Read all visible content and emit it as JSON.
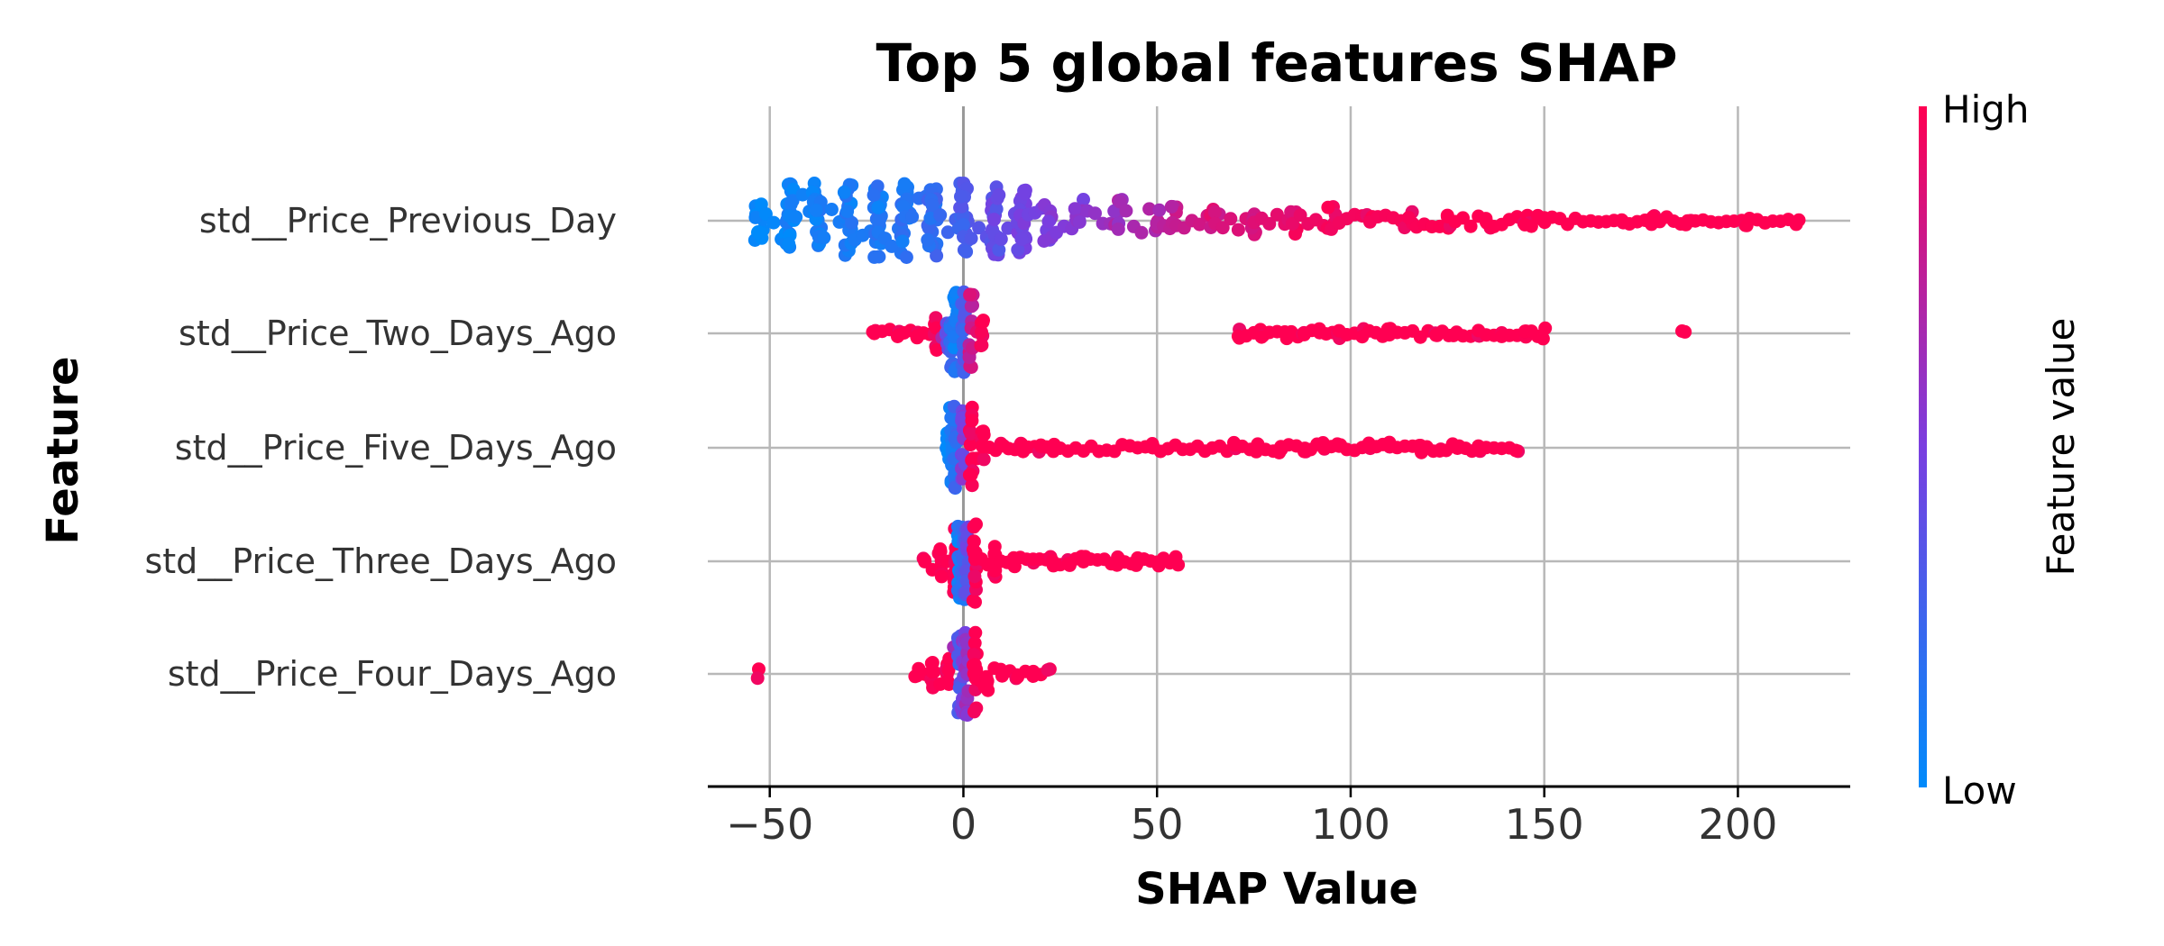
{
  "chart_data": {
    "type": "scatter",
    "subtype": "shap-beeswarm",
    "title": "Top 5 global features SHAP",
    "xlabel": "SHAP Value",
    "ylabel": "Feature",
    "xlim": [
      -66,
      229
    ],
    "x_ticks": [
      -50,
      0,
      50,
      100,
      150,
      200
    ],
    "x_tick_labels": [
      "−50",
      "0",
      "50",
      "100",
      "150",
      "200"
    ],
    "grid": true,
    "colorbar": {
      "label": "Feature value",
      "high_label": "High",
      "low_label": "Low",
      "low_color": "#008bfb",
      "mid_color": "#7a3ee0",
      "high_color": "#ff0052"
    },
    "features": [
      {
        "name": "std__Price_Previous_Day",
        "x_range": [
          -53,
          215
        ],
        "points": [
          [
            -53,
            0.0
          ],
          [
            -45,
            0.05
          ],
          [
            -38,
            0.08
          ],
          [
            -30,
            0.1
          ],
          [
            -22,
            0.12
          ],
          [
            -15,
            0.15
          ],
          [
            -8,
            0.2
          ],
          [
            0,
            0.3
          ],
          [
            8,
            0.4
          ],
          [
            15,
            0.45
          ],
          [
            22,
            0.5
          ],
          [
            30,
            0.55
          ],
          [
            40,
            0.65
          ],
          [
            50,
            0.72
          ],
          [
            55,
            0.78
          ],
          [
            65,
            0.85
          ],
          [
            75,
            0.88
          ],
          [
            85,
            0.92
          ],
          [
            95,
            0.95
          ],
          [
            105,
            0.97
          ],
          [
            115,
            0.98
          ],
          [
            125,
            1.0
          ],
          [
            135,
            1.0
          ],
          [
            145,
            1.0
          ],
          [
            150,
            1.0
          ],
          [
            170,
            1.0
          ],
          [
            178,
            1.0
          ],
          [
            187,
            1.0
          ],
          [
            203,
            1.0
          ],
          [
            215,
            1.0
          ]
        ]
      },
      {
        "name": "std__Price_Two_Days_Ago",
        "x_range": [
          -23,
          186
        ],
        "points": [
          [
            -23,
            1.0
          ],
          [
            -17,
            1.0
          ],
          [
            -12,
            1.0
          ],
          [
            -7,
            1.0
          ],
          [
            -4,
            0.4
          ],
          [
            -3,
            0.2
          ],
          [
            -2,
            0.1
          ],
          [
            0,
            0.3
          ],
          [
            2,
            0.8
          ],
          [
            5,
            1.0
          ],
          [
            71,
            1.0
          ],
          [
            77,
            1.0
          ],
          [
            83,
            1.0
          ],
          [
            88,
            1.0
          ],
          [
            92,
            1.0
          ],
          [
            97,
            1.0
          ],
          [
            103,
            1.0
          ],
          [
            110,
            1.0
          ],
          [
            122,
            1.0
          ],
          [
            127,
            1.0
          ],
          [
            133,
            1.0
          ],
          [
            139,
            1.0
          ],
          [
            145,
            1.0
          ],
          [
            150,
            1.0
          ],
          [
            186,
            1.0
          ]
        ]
      },
      {
        "name": "std__Price_Five_Days_Ago",
        "x_range": [
          -4,
          143
        ],
        "points": [
          [
            -4,
            0.0
          ],
          [
            -3,
            0.1
          ],
          [
            -2,
            0.2
          ],
          [
            0,
            0.5
          ],
          [
            2,
            1.0
          ],
          [
            5,
            1.0
          ],
          [
            10,
            1.0
          ],
          [
            15,
            1.0
          ],
          [
            20,
            1.0
          ],
          [
            23,
            1.0
          ],
          [
            49,
            1.0
          ],
          [
            70,
            1.0
          ],
          [
            76,
            1.0
          ],
          [
            82,
            1.0
          ],
          [
            88,
            1.0
          ],
          [
            93,
            1.0
          ],
          [
            97,
            1.0
          ],
          [
            105,
            1.0
          ],
          [
            110,
            1.0
          ],
          [
            118,
            1.0
          ],
          [
            123,
            1.0
          ],
          [
            128,
            1.0
          ],
          [
            133,
            1.0
          ],
          [
            143,
            1.0
          ]
        ]
      },
      {
        "name": "std__Price_Three_Days_Ago",
        "x_range": [
          -10,
          55
        ],
        "points": [
          [
            -10,
            1.0
          ],
          [
            -6,
            1.0
          ],
          [
            -2,
            1.0
          ],
          [
            -1,
            0.1
          ],
          [
            0,
            0.2
          ],
          [
            1,
            0.4
          ],
          [
            3,
            1.0
          ],
          [
            8,
            1.0
          ],
          [
            13,
            1.0
          ],
          [
            18,
            1.0
          ],
          [
            23,
            1.0
          ],
          [
            27,
            1.0
          ],
          [
            31,
            1.0
          ],
          [
            40,
            1.0
          ],
          [
            45,
            1.0
          ],
          [
            50,
            1.0
          ],
          [
            55,
            1.0
          ]
        ]
      },
      {
        "name": "std__Price_Four_Days_Ago",
        "x_range": [
          -53,
          22
        ],
        "points": [
          [
            -53,
            1.0
          ],
          [
            -12,
            1.0
          ],
          [
            -8,
            1.0
          ],
          [
            -4,
            1.0
          ],
          [
            -1,
            0.3
          ],
          [
            0,
            0.5
          ],
          [
            1,
            0.6
          ],
          [
            3,
            1.0
          ],
          [
            6,
            1.0
          ],
          [
            10,
            1.0
          ],
          [
            14,
            1.0
          ],
          [
            18,
            1.0
          ],
          [
            22,
            1.0
          ]
        ]
      }
    ]
  }
}
